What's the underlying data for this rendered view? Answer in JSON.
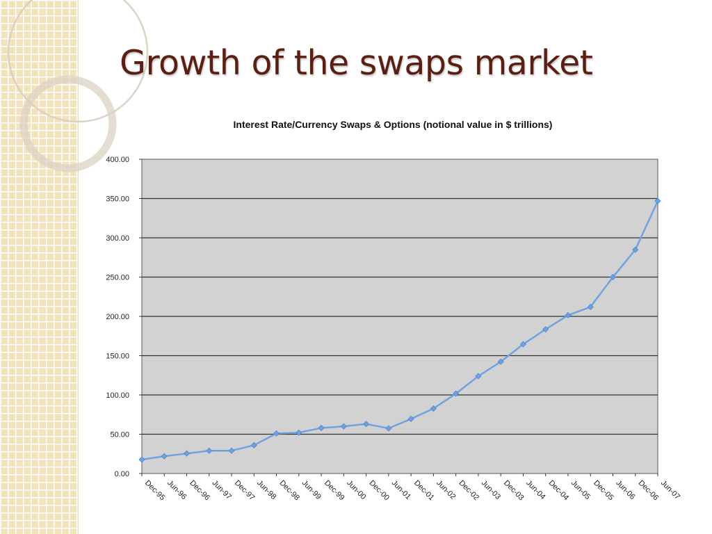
{
  "slide": {
    "title": "Growth of the swaps market"
  },
  "chart_data": {
    "type": "line",
    "title": "Interest Rate/Currency Swaps & Options (notional value in $ trillions)",
    "xlabel": "",
    "ylabel": "",
    "ylim": [
      0,
      400
    ],
    "yticks": [
      "0.00",
      "50.00",
      "100.00",
      "150.00",
      "200.00",
      "250.00",
      "300.00",
      "350.00",
      "400.00"
    ],
    "grid": true,
    "legend": "none",
    "categories": [
      "Dec-95",
      "Jun-96",
      "Dec-96",
      "Jun-97",
      "Dec-97",
      "Jun-98",
      "Dec-98",
      "Jun-99",
      "Dec-99",
      "Jun-00",
      "Dec-00",
      "Jun-01",
      "Dec-01",
      "Jun-02",
      "Dec-02",
      "Jun-03",
      "Dec-03",
      "Jun-04",
      "Dec-04",
      "Jun-05",
      "Dec-05",
      "Jun-06",
      "Dec-06",
      "Jun-07"
    ],
    "series": [
      {
        "values": [
          17.7,
          22,
          25.5,
          29,
          29,
          36,
          51,
          52,
          58,
          60,
          63,
          57.5,
          69.5,
          82.7,
          101.7,
          123.9,
          142.3,
          164.5,
          183.5,
          201.4,
          212,
          250,
          284.8,
          346.9
        ],
        "color": "#6fa3e0"
      }
    ],
    "colors": {
      "plot_bg": "#d2d2d2",
      "grid": "#333333",
      "line": "#6fa3e0"
    }
  }
}
